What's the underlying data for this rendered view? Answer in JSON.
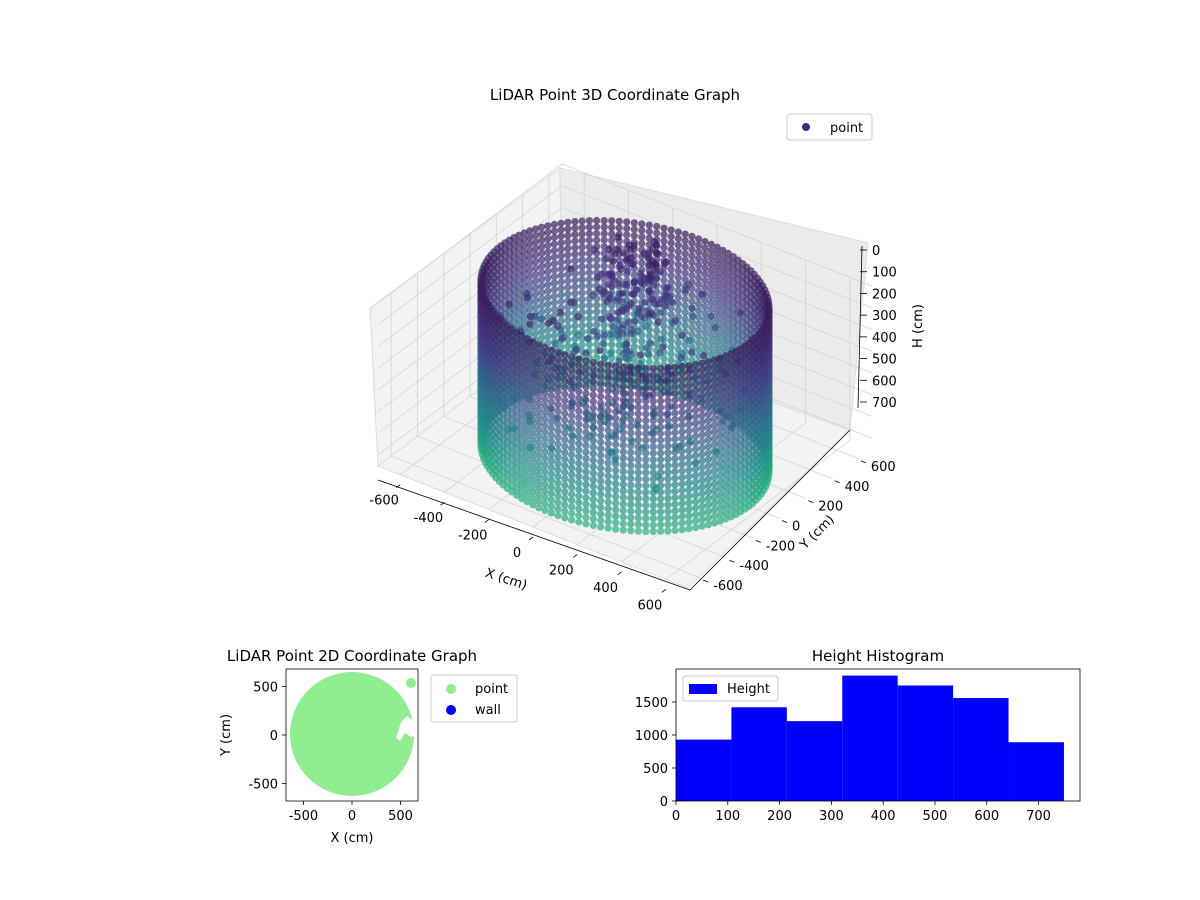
{
  "chart_data": [
    {
      "type": "scatter",
      "projection": "3d",
      "title": "LiDAR Point 3D Coordinate Graph",
      "xlabel": "X (cm)",
      "ylabel": "Y (cm)",
      "zlabel": "H (cm)",
      "xlim": [
        -700,
        700
      ],
      "ylim": [
        -700,
        700
      ],
      "zlim": [
        750,
        0
      ],
      "x_ticks": [
        -600,
        -400,
        -200,
        0,
        200,
        400,
        600
      ],
      "y_ticks": [
        -600,
        -400,
        -200,
        0,
        200,
        400,
        600
      ],
      "z_ticks": [
        0,
        100,
        200,
        300,
        400,
        500,
        600,
        700
      ],
      "grid": true,
      "legend": {
        "placement": "top-right",
        "entries": [
          "point"
        ]
      },
      "colormap": [
        "#3b1f5e",
        "#453781",
        "#33638d",
        "#238a8d",
        "#29af7f"
      ],
      "series": [
        {
          "name": "point",
          "shape": "cylindrical wall of points, radius about 560, height 0 to 750",
          "radius": 560,
          "h_range": [
            0,
            750
          ]
        }
      ]
    },
    {
      "type": "scatter",
      "title": "LiDAR Point 2D Coordinate Graph",
      "xlabel": "X (cm)",
      "ylabel": "Y (cm)",
      "xlim": [
        -680,
        680
      ],
      "ylim": [
        -680,
        680
      ],
      "x_ticks": [
        -500,
        0,
        500
      ],
      "y_ticks": [
        500,
        0,
        -500
      ],
      "legend": {
        "placement": "outside-right",
        "entries": [
          "point",
          "wall"
        ]
      },
      "series": [
        {
          "name": "point",
          "color": "#90ee90",
          "shape": "filled disk, radius about 600"
        },
        {
          "name": "wall",
          "color": "#0000ff",
          "values": []
        }
      ]
    },
    {
      "type": "bar",
      "title": "Height Histogram",
      "xlabel": "",
      "ylabel": "",
      "bin_edges": [
        0,
        107,
        214,
        321,
        428,
        535,
        642,
        749
      ],
      "values": [
        930,
        1420,
        1210,
        1900,
        1750,
        1560,
        890
      ],
      "xlim": [
        0,
        780
      ],
      "ylim": [
        0,
        2000
      ],
      "x_ticks": [
        0,
        100,
        200,
        300,
        400,
        500,
        600,
        700
      ],
      "y_ticks": [
        0,
        500,
        1000,
        1500
      ],
      "color": "#0000ff",
      "legend": {
        "placement": "top-left",
        "entries": [
          "Height"
        ]
      }
    }
  ]
}
